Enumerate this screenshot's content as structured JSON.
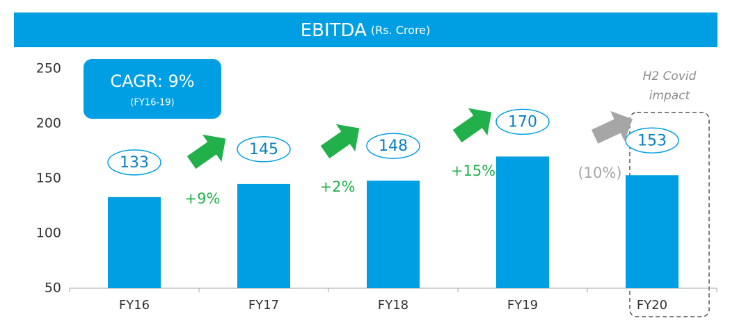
{
  "chart_data": {
    "type": "bar",
    "title": "EBITDA",
    "subtitle": "(Rs. Crore)",
    "categories": [
      "FY16",
      "FY17",
      "FY18",
      "FY19",
      "FY20"
    ],
    "values": [
      133,
      145,
      148,
      170,
      153
    ],
    "color": "#009fe3",
    "ylim": [
      50,
      250
    ],
    "yticks": [
      50,
      100,
      150,
      200,
      250
    ],
    "annotations": [
      {
        "text": "+9%",
        "color": "#22b04b"
      },
      {
        "text": "+2%",
        "color": "#22b04b"
      },
      {
        "text": "+15%",
        "color": "#22b04b"
      },
      {
        "text": "(10%)",
        "color": "#a6a6a6"
      }
    ],
    "cagr": {
      "title": "CAGR: 9%",
      "period": "(FY16-19)"
    },
    "note": [
      "H2 Covid",
      "impact"
    ]
  }
}
